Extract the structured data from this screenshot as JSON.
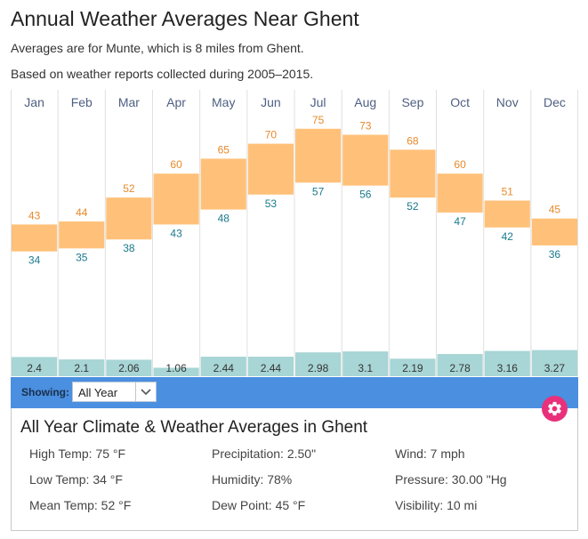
{
  "header": {
    "title": "Annual Weather Averages Near Ghent",
    "subtitle1": "Averages are for Munte, which is 8 miles from Ghent.",
    "subtitle2": "Based on weather reports collected during 2005–2015."
  },
  "chart_data": {
    "type": "bar",
    "title": "Annual Weather Averages Near Ghent",
    "categories": [
      "Jan",
      "Feb",
      "Mar",
      "Apr",
      "May",
      "Jun",
      "Jul",
      "Aug",
      "Sep",
      "Oct",
      "Nov",
      "Dec"
    ],
    "series": [
      {
        "name": "High Temp (°F)",
        "values": [
          43,
          44,
          52,
          60,
          65,
          70,
          75,
          73,
          68,
          60,
          51,
          45
        ]
      },
      {
        "name": "Low Temp (°F)",
        "values": [
          34,
          35,
          38,
          43,
          48,
          53,
          57,
          56,
          52,
          47,
          42,
          36
        ]
      },
      {
        "name": "Precipitation (in)",
        "values": [
          "2.4",
          "2.1",
          "2.06",
          "1.06",
          "2.44",
          "2.44",
          "2.98",
          "3.1",
          "2.19",
          "2.78",
          "3.16",
          "3.27"
        ]
      }
    ],
    "temp_range": [
      0,
      88
    ],
    "precip_range": [
      0,
      10
    ],
    "colors": {
      "temp_bar": "#ffc179",
      "high_label": "#e8892a",
      "low_label": "#1a7a8c",
      "precip_bar": "#a8d5d5",
      "grid": "#e0e0e0"
    }
  },
  "controls": {
    "showing_label": "Showing:",
    "showing_value": "All Year",
    "bar_color": "#4a8fe0",
    "gear_color": "#e8317a"
  },
  "summary": {
    "title": "All Year Climate & Weather Averages in Ghent",
    "high_temp": "High Temp: 75 °F",
    "low_temp": "Low Temp: 34 °F",
    "mean_temp": "Mean Temp: 52 °F",
    "precipitation": "Precipitation: 2.50\"",
    "humidity": "Humidity: 78%",
    "dew_point": "Dew Point: 45 °F",
    "wind": "Wind: 7 mph",
    "pressure": "Pressure: 30.00 \"Hg",
    "visibility": "Visibility: 10 mi"
  }
}
